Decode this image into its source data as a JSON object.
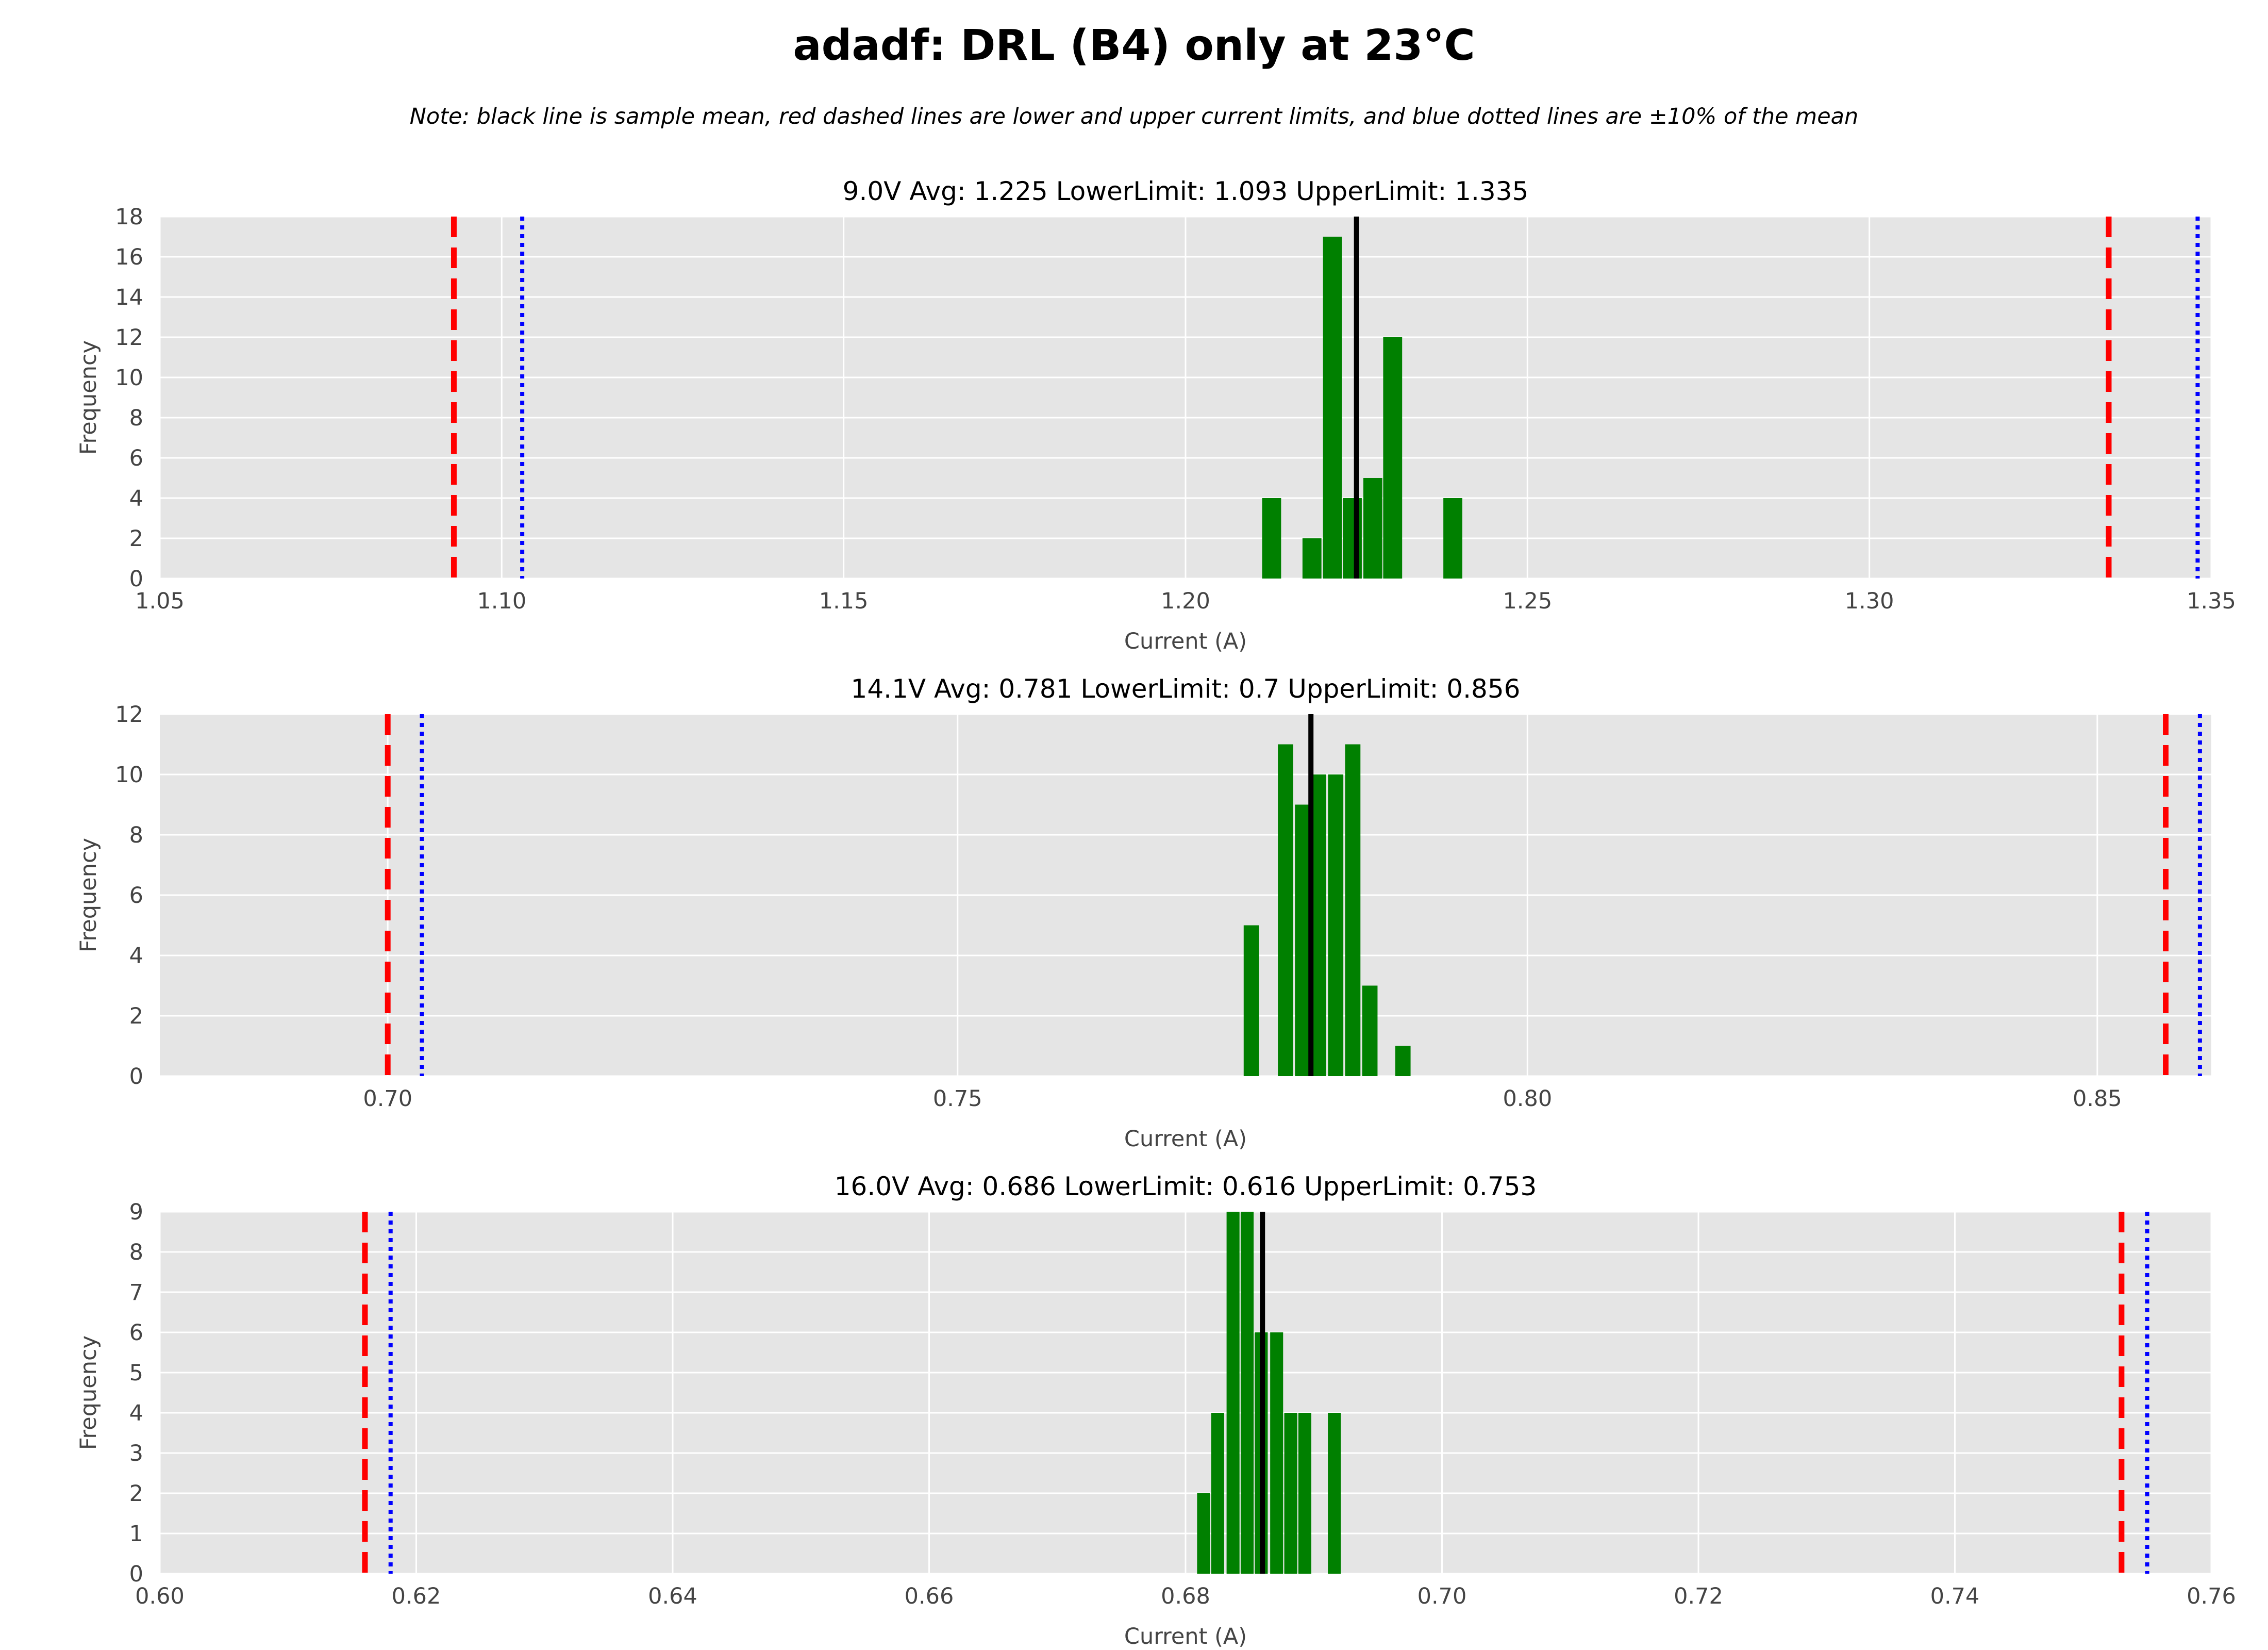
{
  "figure": {
    "title": "adadf: DRL (B4) only at 23°C",
    "note": "Note: black line is sample mean, red dashed lines are lower and upper current limits, and blue dotted lines are ±10% of the mean"
  },
  "colors": {
    "background": "#e5e5e5",
    "grid": "#ffffff",
    "bars": "#008000",
    "mean_line": "#000000",
    "limit_lines": "#ff0000",
    "pct10_lines": "#0000ff"
  },
  "chart_data": [
    {
      "type": "bar",
      "title": "9.0V   Avg: 1.225   LowerLimit: 1.093   UpperLimit: 1.335",
      "xlabel": "Current (A)",
      "ylabel": "Frequency",
      "xlim": [
        1.05,
        1.35
      ],
      "ylim": [
        0,
        18
      ],
      "xticks": [
        "1.05",
        "1.10",
        "1.15",
        "1.20",
        "1.25",
        "1.30",
        "1.35"
      ],
      "yticks": [
        "0",
        "2",
        "4",
        "6",
        "8",
        "10",
        "12",
        "14",
        "16",
        "18"
      ],
      "bin_width": 0.003,
      "bins": [
        {
          "x": 1.2112,
          "count": 4
        },
        {
          "x": 1.2171,
          "count": 2
        },
        {
          "x": 1.2201,
          "count": 17
        },
        {
          "x": 1.223,
          "count": 4
        },
        {
          "x": 1.226,
          "count": 5
        },
        {
          "x": 1.2289,
          "count": 12
        },
        {
          "x": 1.2377,
          "count": 4
        }
      ],
      "mean": 1.225,
      "lower_limit": 1.093,
      "upper_limit": 1.335,
      "minus_10pct": 1.103,
      "plus_10pct": 1.348,
      "grid": true
    },
    {
      "type": "bar",
      "title": "14.1V   Avg: 0.781   LowerLimit: 0.7   UpperLimit: 0.856",
      "xlabel": "Current (A)",
      "ylabel": "Frequency",
      "xlim": [
        0.68,
        0.86
      ],
      "ylim": [
        0,
        12
      ],
      "xticks": [
        "0.70",
        "0.75",
        "0.80",
        "0.85"
      ],
      "yticks": [
        "0",
        "2",
        "4",
        "6",
        "8",
        "10",
        "12"
      ],
      "bin_width": 0.00148,
      "bins": [
        {
          "x": 0.7751,
          "count": 5
        },
        {
          "x": 0.7781,
          "count": 11
        },
        {
          "x": 0.7796,
          "count": 9
        },
        {
          "x": 0.781,
          "count": 10
        },
        {
          "x": 0.7825,
          "count": 10
        },
        {
          "x": 0.784,
          "count": 11
        },
        {
          "x": 0.7855,
          "count": 3
        },
        {
          "x": 0.7884,
          "count": 1
        }
      ],
      "mean": 0.781,
      "lower_limit": 0.7,
      "upper_limit": 0.856,
      "minus_10pct": 0.703,
      "plus_10pct": 0.859,
      "grid": true
    },
    {
      "type": "bar",
      "title": "16.0V   Avg: 0.686   LowerLimit: 0.616   UpperLimit: 0.753",
      "xlabel": "Current (A)",
      "ylabel": "Frequency",
      "xlim": [
        0.6,
        0.76
      ],
      "ylim": [
        0,
        9
      ],
      "xticks": [
        "0.60",
        "0.62",
        "0.64",
        "0.66",
        "0.68",
        "0.70",
        "0.72",
        "0.74",
        "0.76"
      ],
      "yticks": [
        "0",
        "1",
        "2",
        "3",
        "4",
        "5",
        "6",
        "7",
        "8",
        "9"
      ],
      "bin_width": 0.00113,
      "bins": [
        {
          "x": 0.6809,
          "count": 2
        },
        {
          "x": 0.682,
          "count": 4
        },
        {
          "x": 0.6832,
          "count": 9
        },
        {
          "x": 0.6843,
          "count": 9
        },
        {
          "x": 0.6854,
          "count": 6
        },
        {
          "x": 0.6866,
          "count": 6
        },
        {
          "x": 0.6877,
          "count": 4
        },
        {
          "x": 0.6888,
          "count": 4
        },
        {
          "x": 0.6911,
          "count": 4
        }
      ],
      "mean": 0.686,
      "lower_limit": 0.616,
      "upper_limit": 0.753,
      "minus_10pct": 0.618,
      "plus_10pct": 0.755,
      "grid": true
    }
  ]
}
